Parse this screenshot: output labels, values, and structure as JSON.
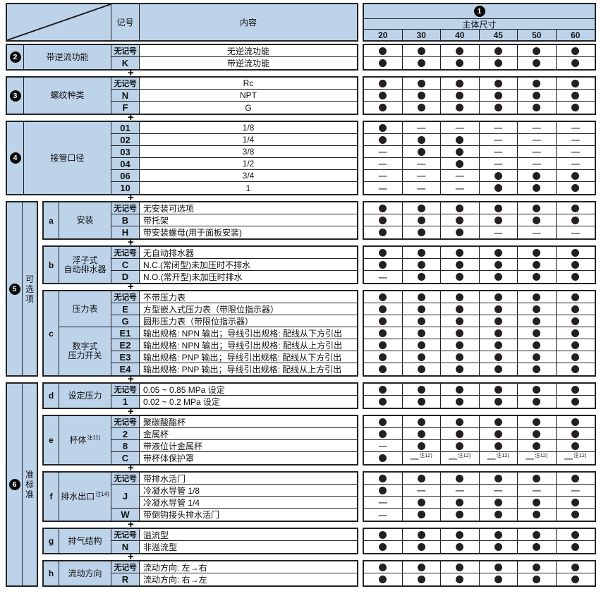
{
  "header": {
    "symbol": "记号",
    "content": "内容",
    "badge": "1",
    "size_title": "主体尺寸",
    "sizes": [
      "20",
      "30",
      "40",
      "45",
      "50",
      "60"
    ]
  },
  "symbols": {
    "dot": "●",
    "dash": "—",
    "plus": "+",
    "dash_note": "注12)"
  },
  "colors": {
    "header_blue": "#bdd3e9",
    "dot": "#241f21",
    "border": "#232323"
  },
  "groups": [
    {
      "badge": "2",
      "name": [
        "带逆流功能"
      ],
      "content_align": "center",
      "rows": [
        {
          "code": "无记号",
          "desc": "无逆流功能",
          "cells": [
            "d",
            "d",
            "d",
            "d",
            "d",
            "d"
          ]
        },
        {
          "code": "K",
          "desc": "带逆流功能",
          "cells": [
            "d",
            "d",
            "d",
            "d",
            "d",
            "d"
          ]
        }
      ]
    },
    {
      "badge": "3",
      "name": [
        "螺纹种类"
      ],
      "content_align": "center",
      "rows": [
        {
          "code": "无记号",
          "desc": "Rc",
          "cells": [
            "d",
            "d",
            "d",
            "d",
            "d",
            "d"
          ]
        },
        {
          "code": "N",
          "desc": "NPT",
          "cells": [
            "d",
            "d",
            "d",
            "d",
            "d",
            "d"
          ]
        },
        {
          "code": "F",
          "desc": "G",
          "cells": [
            "d",
            "d",
            "d",
            "d",
            "d",
            "d"
          ]
        }
      ]
    },
    {
      "badge": "4",
      "name": [
        "接管口径"
      ],
      "content_align": "center",
      "rows": [
        {
          "code": "01",
          "desc": "1/8",
          "cells": [
            "d",
            "-",
            "-",
            "-",
            "-",
            "-"
          ]
        },
        {
          "code": "02",
          "desc": "1/4",
          "cells": [
            "d",
            "d",
            "d",
            "-",
            "-",
            "-"
          ]
        },
        {
          "code": "03",
          "desc": "3/8",
          "cells": [
            "-",
            "d",
            "d",
            "-",
            "-",
            "-"
          ]
        },
        {
          "code": "04",
          "desc": "1/2",
          "cells": [
            "-",
            "-",
            "d",
            "-",
            "-",
            "-"
          ]
        },
        {
          "code": "06",
          "desc": "3/4",
          "cells": [
            "-",
            "-",
            "-",
            "d",
            "d",
            "d"
          ]
        },
        {
          "code": "10",
          "desc": "1",
          "cells": [
            "-",
            "-",
            "-",
            "d",
            "d",
            "d"
          ]
        }
      ]
    },
    {
      "badge": "5",
      "vertical": "可选项",
      "subs": [
        {
          "letter": "a",
          "name": [
            "安装"
          ],
          "rows": [
            {
              "code": "无记号",
              "desc": "无安装可选项",
              "cells": [
                "d",
                "d",
                "d",
                "d",
                "d",
                "d"
              ]
            },
            {
              "code": "B",
              "desc": "带托架",
              "cells": [
                "d",
                "d",
                "d",
                "d",
                "d",
                "d"
              ]
            },
            {
              "code": "H",
              "desc": "带安装螺母(用于面板安装)",
              "cells": [
                "d",
                "d",
                "d",
                "-",
                "-",
                "-"
              ]
            }
          ]
        },
        {
          "letter": "b",
          "name": [
            "浮子式",
            "自动排水器"
          ],
          "rows": [
            {
              "code": "无记号",
              "desc": "无自动排水器",
              "cells": [
                "d",
                "d",
                "d",
                "d",
                "d",
                "d"
              ]
            },
            {
              "code": "C",
              "desc": "N.C.(常闭型)未加压时不排水",
              "cells": [
                "d",
                "d",
                "d",
                "d",
                "d",
                "d"
              ]
            },
            {
              "code": "D",
              "desc": "N.O.(常开型)未加压时排水",
              "cells": [
                "-",
                "d",
                "d",
                "d",
                "d",
                "d"
              ]
            }
          ]
        },
        {
          "letter": "c",
          "name_blocks": [
            {
              "lines": [
                "压力表"
              ],
              "span": 3
            },
            {
              "lines": [
                "数字式",
                "压力开关"
              ],
              "span": 4
            }
          ],
          "rows": [
            {
              "code": "无记号",
              "desc": "不带压力表",
              "cells": [
                "d",
                "d",
                "d",
                "d",
                "d",
                "d"
              ]
            },
            {
              "code": "E",
              "desc": "方型嵌入式压力表（带限位指示器）",
              "cells": [
                "d",
                "d",
                "d",
                "d",
                "d",
                "d"
              ]
            },
            {
              "code": "G",
              "desc": "圆形压力表（带限位指示器）",
              "cells": [
                "d",
                "d",
                "d",
                "d",
                "d",
                "d"
              ]
            },
            {
              "code": "E1",
              "desc": "输出规格: NPN 输出；导线引出规格: 配线从下方引出",
              "cells": [
                "d",
                "d",
                "d",
                "d",
                "d",
                "d"
              ]
            },
            {
              "code": "E2",
              "desc": "输出规格: NPN 输出；导线引出规格: 配线从上方引出",
              "cells": [
                "d",
                "d",
                "d",
                "d",
                "d",
                "d"
              ]
            },
            {
              "code": "E3",
              "desc": "输出规格: PNP 输出；导线引出规格: 配线从下方引出",
              "cells": [
                "d",
                "d",
                "d",
                "d",
                "d",
                "d"
              ]
            },
            {
              "code": "E4",
              "desc": "输出规格: PNP 输出；导线引出规格: 配线从上方引出",
              "cells": [
                "d",
                "d",
                "d",
                "d",
                "d",
                "d"
              ]
            }
          ]
        }
      ]
    },
    {
      "badge": "6",
      "vertical": "准标准",
      "subs": [
        {
          "letter": "d",
          "name": [
            "设定压力"
          ],
          "rows": [
            {
              "code": "无记号",
              "desc": "0.05 ~ 0.85 MPa 设定",
              "cells": [
                "d",
                "d",
                "d",
                "d",
                "d",
                "d"
              ]
            },
            {
              "code": "1",
              "desc": "0.02 ~ 0.2 MPa 设定",
              "cells": [
                "d",
                "d",
                "d",
                "d",
                "d",
                "d"
              ]
            }
          ]
        },
        {
          "letter": "e",
          "name": [
            "杯体"
          ],
          "name_sup": "注11)",
          "rows": [
            {
              "code": "无记号",
              "desc": "聚碳酸酯杯",
              "cells": [
                "d",
                "d",
                "d",
                "d",
                "d",
                "d"
              ]
            },
            {
              "code": "2",
              "desc": "金属杯",
              "cells": [
                "d",
                "d",
                "d",
                "d",
                "d",
                "d"
              ]
            },
            {
              "code": "8",
              "desc": "带液位计金属杯",
              "cells": [
                "-",
                "d",
                "d",
                "d",
                "d",
                "d"
              ]
            },
            {
              "code": "C",
              "desc": "带杯体保护罩",
              "cells": [
                "d",
                "n",
                "n",
                "n",
                "n",
                "n"
              ]
            }
          ]
        },
        {
          "letter": "f",
          "name": [
            "排水出口"
          ],
          "name_sup": "注14)",
          "rows": [
            {
              "code": "无记号",
              "desc": "带排水活门",
              "cells": [
                "d",
                "d",
                "d",
                "d",
                "d",
                "d"
              ]
            },
            {
              "code": "J",
              "code_span": 2,
              "desc": "冷凝水导管 1/8",
              "cells": [
                "d",
                "-",
                "-",
                "-",
                "-",
                "-"
              ]
            },
            {
              "code": null,
              "desc": "冷凝水导管 1/4",
              "cells": [
                "-",
                "d",
                "d",
                "d",
                "d",
                "d"
              ]
            },
            {
              "code": "W",
              "desc": "带倒钩接头排水活门",
              "cells": [
                "-",
                "d",
                "d",
                "d",
                "d",
                "d"
              ]
            }
          ]
        },
        {
          "letter": "g",
          "name": [
            "排气结构"
          ],
          "rows": [
            {
              "code": "无记号",
              "desc": "溢流型",
              "cells": [
                "d",
                "d",
                "d",
                "d",
                "d",
                "d"
              ]
            },
            {
              "code": "N",
              "desc": "非溢流型",
              "cells": [
                "d",
                "d",
                "d",
                "d",
                "d",
                "d"
              ]
            }
          ]
        },
        {
          "letter": "h",
          "name": [
            "流动方向"
          ],
          "rows": [
            {
              "code": "无记号",
              "desc": "流动方向: 左→右",
              "cells": [
                "d",
                "d",
                "d",
                "d",
                "d",
                "d"
              ]
            },
            {
              "code": "R",
              "desc": "流动方向: 右→左",
              "cells": [
                "d",
                "d",
                "d",
                "d",
                "d",
                "d"
              ]
            }
          ]
        }
      ]
    }
  ]
}
